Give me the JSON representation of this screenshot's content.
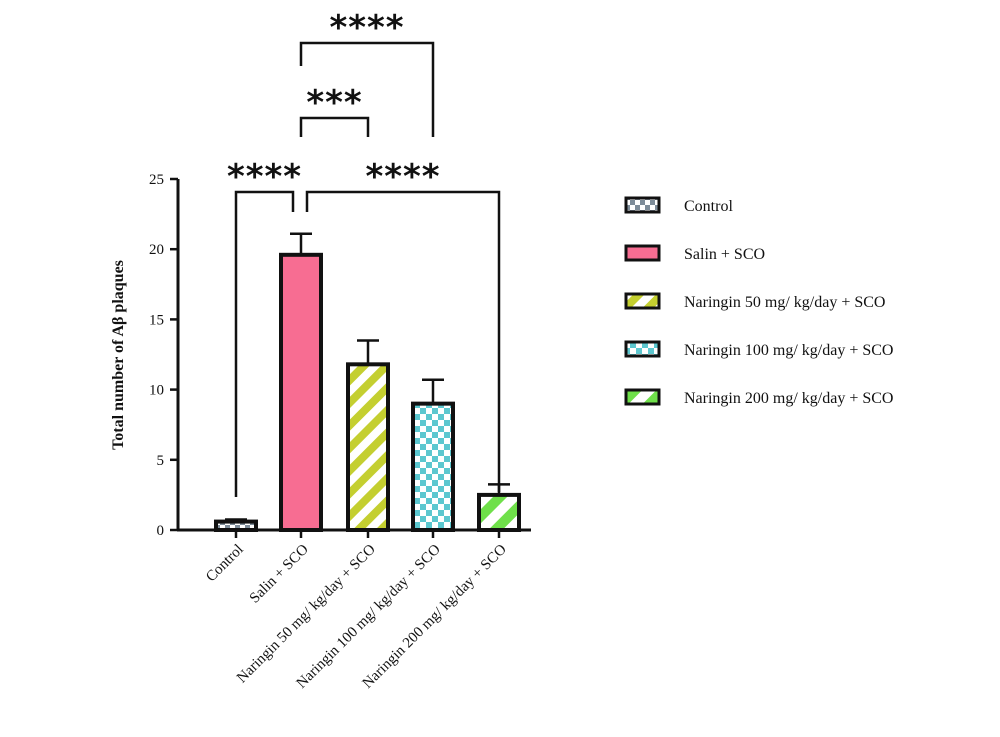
{
  "chart_data": {
    "type": "bar",
    "ylabel": "Total number of Aβ plaques",
    "xlabel": "",
    "ylim": [
      0,
      25
    ],
    "yticks": [
      0,
      5,
      10,
      15,
      20,
      25
    ],
    "categories": [
      "Control",
      "Salin + SCO",
      "Naringin 50 mg/ kg/day + SCO",
      "Naringin 100 mg/ kg/day + SCO",
      "Naringin 200 mg/ kg/day + SCO"
    ],
    "values": [
      0.6,
      19.6,
      11.8,
      9.0,
      2.5
    ],
    "errors": [
      0.15,
      1.5,
      1.7,
      1.7,
      0.75
    ],
    "patterns": [
      "checker-grey",
      "solid",
      "stripes",
      "checker-teal",
      "stripes-wide"
    ],
    "colors": [
      "#7d8c99",
      "#f76d92",
      "#c4cf30",
      "#5cc7cf",
      "#6fe04a"
    ],
    "legend": {
      "position": "right",
      "items": [
        "Control",
        "Salin + SCO",
        "Naringin 50 mg/ kg/day + SCO",
        "Naringin 100 mg/ kg/day + SCO",
        "Naringin 200 mg/ kg/day + SCO"
      ]
    },
    "annotations": [
      {
        "from": "Control",
        "to": "Salin + SCO",
        "text": "****"
      },
      {
        "from": "Salin + SCO",
        "to": "Naringin 200 mg/ kg/day + SCO",
        "text": "****"
      },
      {
        "from": "Salin + SCO",
        "to": "Naringin 50 mg/ kg/day + SCO",
        "text": "***"
      },
      {
        "from": "Salin + SCO",
        "to": "Naringin 100 mg/ kg/day + SCO",
        "text": "****"
      }
    ]
  }
}
